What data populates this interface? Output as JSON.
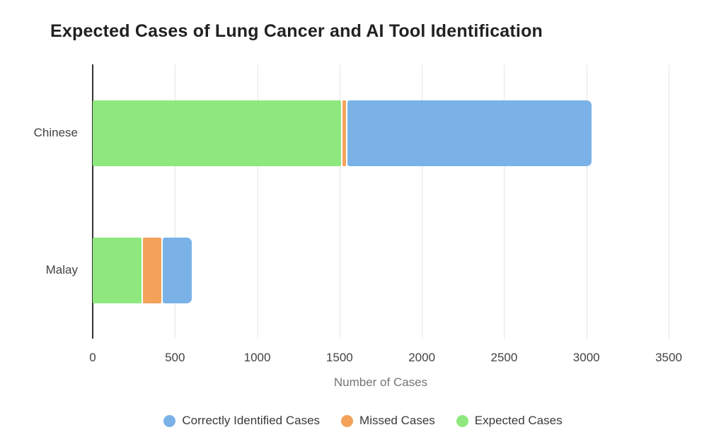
{
  "title": "Expected Cases of Lung Cancer and AI Tool Identification",
  "chart_data": {
    "type": "bar",
    "orientation": "horizontal",
    "stacked": true,
    "title": "Expected Cases of Lung Cancer and AI Tool Identification",
    "categories": [
      "Chinese",
      "Malay"
    ],
    "series": [
      {
        "name": "Expected Cases",
        "color": "#8ee87d",
        "values": [
          1515,
          300
        ]
      },
      {
        "name": "Missed Cases",
        "color": "#f4a259",
        "values": [
          30,
          120
        ]
      },
      {
        "name": "Correctly Identified Cases",
        "color": "#7ab2e8",
        "values": [
          1485,
          180
        ]
      }
    ],
    "stack_totals": [
      3030,
      600
    ],
    "xlabel": "Number of Cases",
    "xlim": [
      0,
      3500
    ],
    "xticks": [
      0,
      500,
      1000,
      1500,
      2000,
      2500,
      3000,
      3500
    ],
    "grid": true,
    "legend_position": "bottom",
    "legend_items": [
      {
        "label": "Correctly Identified Cases",
        "color": "#7ab2e8"
      },
      {
        "label": "Missed Cases",
        "color": "#f4a259"
      },
      {
        "label": "Expected Cases",
        "color": "#8ee87d"
      }
    ],
    "colors": {
      "gridline": "#e6e6e6",
      "axis_line": "#333333",
      "title_text": "#212121",
      "tick_text": "#424242",
      "axis_title_text": "#757575",
      "legend_text": "#3a3a3a"
    }
  }
}
